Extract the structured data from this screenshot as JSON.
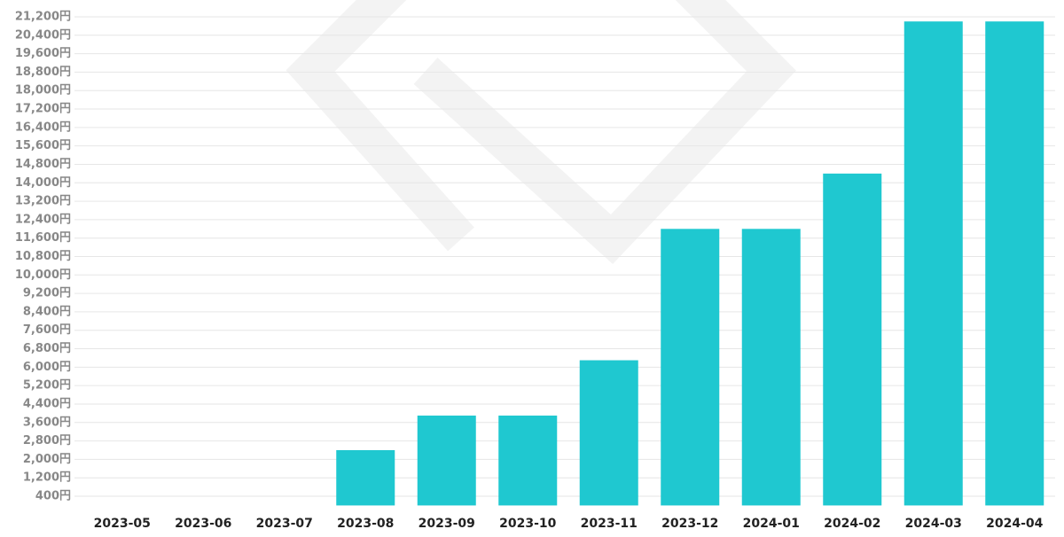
{
  "chart_data": {
    "type": "bar",
    "categories": [
      "2023-05",
      "2023-06",
      "2023-07",
      "2023-08",
      "2023-09",
      "2023-10",
      "2023-11",
      "2023-12",
      "2024-01",
      "2024-02",
      "2024-03",
      "2024-04"
    ],
    "values": [
      0,
      0,
      0,
      2400,
      3900,
      3900,
      6300,
      12000,
      12000,
      14400,
      21000,
      21000
    ],
    "color": "#1fc8d0",
    "ylim": [
      0,
      21600
    ],
    "yticks": [
      {
        "value": 400,
        "label": "400円"
      },
      {
        "value": 1200,
        "label": "1,200円"
      },
      {
        "value": 2000,
        "label": "2,000円"
      },
      {
        "value": 2800,
        "label": "2,800円"
      },
      {
        "value": 3600,
        "label": "3,600円"
      },
      {
        "value": 4400,
        "label": "4,400円"
      },
      {
        "value": 5200,
        "label": "5,200円"
      },
      {
        "value": 6000,
        "label": "6,000円"
      },
      {
        "value": 6800,
        "label": "6,800円"
      },
      {
        "value": 7600,
        "label": "7,600円"
      },
      {
        "value": 8400,
        "label": "8,400円"
      },
      {
        "value": 9200,
        "label": "9,200円"
      },
      {
        "value": 10000,
        "label": "10,000円"
      },
      {
        "value": 10800,
        "label": "10,800円"
      },
      {
        "value": 11600,
        "label": "11,600円"
      },
      {
        "value": 12400,
        "label": "12,400円"
      },
      {
        "value": 13200,
        "label": "13,200円"
      },
      {
        "value": 14000,
        "label": "14,000円"
      },
      {
        "value": 14800,
        "label": "14,800円"
      },
      {
        "value": 15600,
        "label": "15,600円"
      },
      {
        "value": 16400,
        "label": "16,400円"
      },
      {
        "value": 17200,
        "label": "17,200円"
      },
      {
        "value": 18000,
        "label": "18,000円"
      },
      {
        "value": 18800,
        "label": "18,800円"
      },
      {
        "value": 19600,
        "label": "19,600円"
      },
      {
        "value": 20400,
        "label": "20,400円"
      },
      {
        "value": 21200,
        "label": "21,200円"
      }
    ],
    "grid": true
  }
}
